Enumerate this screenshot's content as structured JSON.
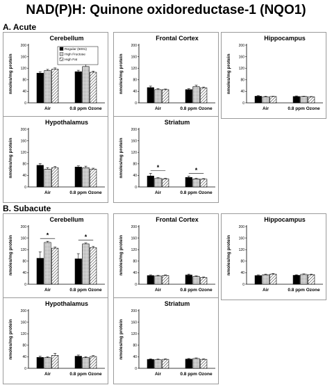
{
  "title": "NAD(P)H: Quinone oxidoreductase-1 (NQO1)",
  "sections": [
    {
      "label": "A. Acute"
    },
    {
      "label": "B. Subacute"
    }
  ],
  "colors": {
    "regular": "#000000",
    "fructose": "#cfcfcf",
    "fat": "#ffffff",
    "frame": "#9a9a9a"
  },
  "legend": [
    "Regular (5001)",
    "High Fructose",
    "High Fat"
  ],
  "chart_data": [
    {
      "section": "A. Acute",
      "type": "bar",
      "title": "Cerebellum",
      "ylabel": "nmoles/mg protein",
      "ylim": [
        0,
        200
      ],
      "yticks": [
        0,
        40,
        80,
        120,
        160,
        200
      ],
      "categories": [
        "Air",
        "0.8 ppm Ozone"
      ],
      "legend_shown": true,
      "series": [
        {
          "name": "Regular (5001)",
          "values": [
            103,
            108
          ],
          "errors": [
            5,
            5
          ]
        },
        {
          "name": "High Fructose",
          "values": [
            112,
            126
          ],
          "errors": [
            4,
            7
          ]
        },
        {
          "name": "High Fat",
          "values": [
            117,
            106
          ],
          "errors": [
            4,
            4
          ]
        }
      ],
      "significance": []
    },
    {
      "section": "A. Acute",
      "type": "bar",
      "title": "Frontal Cortex",
      "ylabel": "nmoles/mg protein",
      "ylim": [
        0,
        200
      ],
      "yticks": [
        0,
        40,
        80,
        120,
        160,
        200
      ],
      "categories": [
        "Air",
        "0.8 ppm Ozone"
      ],
      "legend_shown": false,
      "series": [
        {
          "name": "Regular (5001)",
          "values": [
            53,
            46
          ],
          "errors": [
            5,
            3
          ]
        },
        {
          "name": "High Fructose",
          "values": [
            46,
            56
          ],
          "errors": [
            3,
            5
          ]
        },
        {
          "name": "High Fat",
          "values": [
            46,
            52
          ],
          "errors": [
            2,
            3
          ]
        }
      ],
      "significance": []
    },
    {
      "section": "A. Acute",
      "type": "bar",
      "title": "Hippocampus",
      "ylabel": "nmoles/mg protein",
      "ylim": [
        0,
        200
      ],
      "yticks": [
        0,
        40,
        80,
        120,
        160,
        200
      ],
      "categories": [
        "Air",
        "0.8 ppm Ozone"
      ],
      "legend_shown": false,
      "series": [
        {
          "name": "Regular (5001)",
          "values": [
            23,
            22
          ],
          "errors": [
            2,
            2
          ]
        },
        {
          "name": "High Fructose",
          "values": [
            21,
            22
          ],
          "errors": [
            2,
            1
          ]
        },
        {
          "name": "High Fat",
          "values": [
            22,
            21
          ],
          "errors": [
            1,
            1
          ]
        }
      ],
      "significance": []
    },
    {
      "section": "A. Acute",
      "type": "bar",
      "title": "Hypothalamus",
      "ylabel": "nmoles/mg protein",
      "ylim": [
        0,
        200
      ],
      "yticks": [
        0,
        40,
        80,
        120,
        160,
        200
      ],
      "categories": [
        "Air",
        "0.8 ppm Ozone"
      ],
      "legend_shown": false,
      "series": [
        {
          "name": "Regular (5001)",
          "values": [
            75,
            69
          ],
          "errors": [
            6,
            4
          ]
        },
        {
          "name": "High Fructose",
          "values": [
            62,
            67
          ],
          "errors": [
            5,
            5
          ]
        },
        {
          "name": "High Fat",
          "values": [
            67,
            62
          ],
          "errors": [
            4,
            3
          ]
        }
      ],
      "significance": []
    },
    {
      "section": "A. Acute",
      "type": "bar",
      "title": "Striatum",
      "ylabel": "nmoles/mg protein",
      "ylim": [
        0,
        200
      ],
      "yticks": [
        0,
        40,
        80,
        120,
        160,
        200
      ],
      "categories": [
        "Air",
        "0.8 ppm Ozone"
      ],
      "legend_shown": false,
      "series": [
        {
          "name": "Regular (5001)",
          "values": [
            38,
            33
          ],
          "errors": [
            9,
            4
          ]
        },
        {
          "name": "High Fructose",
          "values": [
            30,
            28
          ],
          "errors": [
            2,
            2
          ]
        },
        {
          "name": "High Fat",
          "values": [
            28,
            27
          ],
          "errors": [
            2,
            2
          ]
        }
      ],
      "significance": [
        {
          "category": 0,
          "label": "*"
        },
        {
          "category": 1,
          "label": "*"
        }
      ]
    },
    {
      "section": "B. Subacute",
      "type": "bar",
      "title": "Cerebellum",
      "ylabel": "nmoles/mg protein",
      "ylim": [
        0,
        200
      ],
      "yticks": [
        0,
        40,
        80,
        120,
        160,
        200
      ],
      "categories": [
        "Air",
        "0.8 ppm Ozone"
      ],
      "legend_shown": false,
      "series": [
        {
          "name": "Regular (5001)",
          "values": [
            90,
            88
          ],
          "errors": [
            22,
            18
          ]
        },
        {
          "name": "High Fructose",
          "values": [
            145,
            140
          ],
          "errors": [
            4,
            3
          ]
        },
        {
          "name": "High Fat",
          "values": [
            125,
            127
          ],
          "errors": [
            4,
            4
          ]
        }
      ],
      "significance": [
        {
          "category": 0,
          "label": "*"
        },
        {
          "category": 1,
          "label": "*"
        }
      ]
    },
    {
      "section": "B. Subacute",
      "type": "bar",
      "title": "Frontal Cortex",
      "ylabel": "nmoles/mg protein",
      "ylim": [
        0,
        200
      ],
      "yticks": [
        0,
        40,
        80,
        120,
        160,
        200
      ],
      "categories": [
        "Air",
        "0.8 ppm Ozone"
      ],
      "legend_shown": false,
      "series": [
        {
          "name": "Regular (5001)",
          "values": [
            30,
            32
          ],
          "errors": [
            2,
            3
          ]
        },
        {
          "name": "High Fructose",
          "values": [
            29,
            27
          ],
          "errors": [
            2,
            2
          ]
        },
        {
          "name": "High Fat",
          "values": [
            30,
            23
          ],
          "errors": [
            2,
            2
          ]
        }
      ],
      "significance": []
    },
    {
      "section": "B. Subacute",
      "type": "bar",
      "title": "Hippocampus",
      "ylabel": "nmoles/mg protein",
      "ylim": [
        0,
        200
      ],
      "yticks": [
        0,
        40,
        80,
        120,
        160,
        200
      ],
      "categories": [
        "Air",
        "0.8 ppm Ozone"
      ],
      "legend_shown": false,
      "series": [
        {
          "name": "Regular (5001)",
          "values": [
            30,
            31
          ],
          "errors": [
            2,
            2
          ]
        },
        {
          "name": "High Fructose",
          "values": [
            33,
            34
          ],
          "errors": [
            2,
            2
          ]
        },
        {
          "name": "High Fat",
          "values": [
            35,
            33
          ],
          "errors": [
            2,
            2
          ]
        }
      ],
      "significance": []
    },
    {
      "section": "B. Subacute",
      "type": "bar",
      "title": "Hypothalamus",
      "ylabel": "nmoles/mg protein",
      "ylim": [
        0,
        200
      ],
      "yticks": [
        0,
        40,
        80,
        120,
        160,
        200
      ],
      "categories": [
        "Air",
        "0.8 ppm Ozone"
      ],
      "legend_shown": false,
      "series": [
        {
          "name": "Regular (5001)",
          "values": [
            38,
            42
          ],
          "errors": [
            4,
            4
          ]
        },
        {
          "name": "High Fructose",
          "values": [
            37,
            37
          ],
          "errors": [
            3,
            3
          ]
        },
        {
          "name": "High Fat",
          "values": [
            45,
            41
          ],
          "errors": [
            7,
            3
          ]
        }
      ],
      "significance": []
    },
    {
      "section": "B. Subacute",
      "type": "bar",
      "title": "Striatum",
      "ylabel": "nmoles/mg protein",
      "ylim": [
        0,
        200
      ],
      "yticks": [
        0,
        40,
        80,
        120,
        160,
        200
      ],
      "categories": [
        "Air",
        "0.8 ppm Ozone"
      ],
      "legend_shown": false,
      "series": [
        {
          "name": "Regular (5001)",
          "values": [
            31,
            32
          ],
          "errors": [
            2,
            2
          ]
        },
        {
          "name": "High Fructose",
          "values": [
            30,
            34
          ],
          "errors": [
            2,
            2
          ]
        },
        {
          "name": "High Fat",
          "values": [
            31,
            31
          ],
          "errors": [
            2,
            2
          ]
        }
      ],
      "significance": []
    }
  ]
}
